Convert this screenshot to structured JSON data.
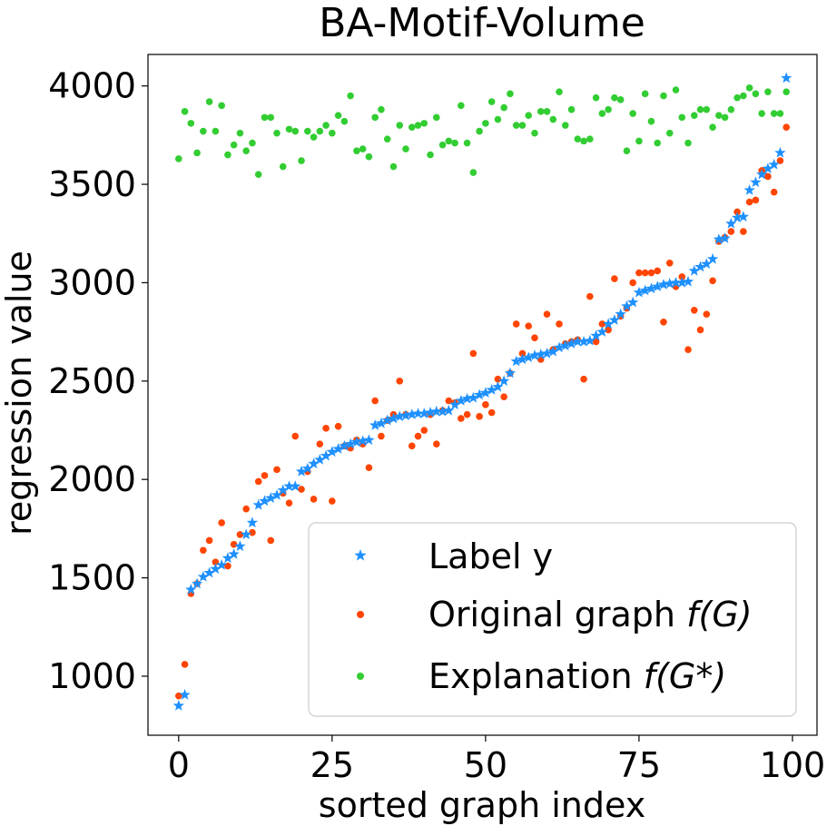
{
  "chart_data": {
    "type": "scatter",
    "title": "BA-Motif-Volume",
    "xlabel": "sorted graph index",
    "ylabel": "regression value",
    "xlim": [
      -5,
      104
    ],
    "ylim": [
      700,
      4160
    ],
    "xticks": [
      0,
      25,
      50,
      75,
      100
    ],
    "yticks": [
      1000,
      1500,
      2000,
      2500,
      3000,
      3500,
      4000
    ],
    "grid": false,
    "legend_position": "lower-right",
    "legend_entries": [
      {
        "label": "Label y",
        "marker": "star",
        "color": "#1e90ff"
      },
      {
        "label": "Original graph",
        "math": "f(G)",
        "marker": "circle",
        "color": "#ff4500"
      },
      {
        "label": "Explanation",
        "math": "f(G*)",
        "marker": "circle",
        "color": "#32cd32"
      }
    ],
    "series": [
      {
        "name": "Label y",
        "color": "#1e90ff",
        "marker": "star",
        "x": [
          0,
          1,
          2,
          3,
          4,
          5,
          6,
          7,
          8,
          9,
          10,
          11,
          12,
          13,
          14,
          15,
          16,
          17,
          18,
          19,
          20,
          21,
          22,
          23,
          24,
          25,
          26,
          27,
          28,
          29,
          30,
          31,
          32,
          33,
          34,
          35,
          36,
          37,
          38,
          39,
          40,
          41,
          42,
          43,
          44,
          45,
          46,
          47,
          48,
          49,
          50,
          51,
          52,
          53,
          54,
          55,
          56,
          57,
          58,
          59,
          60,
          61,
          62,
          63,
          64,
          65,
          66,
          67,
          68,
          69,
          70,
          71,
          72,
          73,
          74,
          75,
          76,
          77,
          78,
          79,
          80,
          81,
          82,
          83,
          84,
          85,
          86,
          87,
          88,
          89,
          90,
          91,
          92,
          93,
          94,
          95,
          96,
          97,
          98,
          99
        ],
        "y": [
          850,
          905,
          1440,
          1470,
          1505,
          1525,
          1545,
          1565,
          1600,
          1620,
          1660,
          1720,
          1780,
          1870,
          1890,
          1905,
          1920,
          1945,
          1965,
          1965,
          2040,
          2055,
          2080,
          2100,
          2120,
          2140,
          2155,
          2170,
          2180,
          2190,
          2195,
          2200,
          2275,
          2285,
          2300,
          2310,
          2320,
          2325,
          2330,
          2335,
          2335,
          2340,
          2345,
          2345,
          2350,
          2380,
          2400,
          2410,
          2415,
          2430,
          2440,
          2455,
          2470,
          2500,
          2540,
          2600,
          2610,
          2620,
          2630,
          2635,
          2640,
          2650,
          2670,
          2680,
          2690,
          2700,
          2700,
          2705,
          2730,
          2750,
          2790,
          2810,
          2840,
          2880,
          2900,
          2950,
          2960,
          2970,
          2980,
          2990,
          2995,
          3000,
          3000,
          3005,
          3060,
          3080,
          3095,
          3120,
          3220,
          3225,
          3300,
          3330,
          3335,
          3470,
          3510,
          3550,
          3580,
          3600,
          3660,
          4040
        ]
      },
      {
        "name": "Original graph f(G)",
        "color": "#ff4500",
        "marker": "circle",
        "x": [
          0,
          1,
          2,
          3,
          4,
          5,
          6,
          7,
          8,
          9,
          10,
          11,
          12,
          13,
          14,
          15,
          16,
          17,
          18,
          19,
          20,
          21,
          22,
          23,
          24,
          25,
          26,
          27,
          28,
          29,
          30,
          31,
          32,
          33,
          34,
          35,
          36,
          37,
          38,
          39,
          40,
          41,
          42,
          43,
          44,
          45,
          46,
          47,
          48,
          49,
          50,
          51,
          52,
          53,
          54,
          55,
          56,
          57,
          58,
          59,
          60,
          61,
          62,
          63,
          64,
          65,
          66,
          67,
          68,
          69,
          70,
          71,
          72,
          73,
          74,
          75,
          76,
          77,
          78,
          79,
          80,
          81,
          82,
          83,
          84,
          85,
          86,
          87,
          88,
          89,
          90,
          91,
          92,
          93,
          94,
          95,
          96,
          97,
          98,
          99
        ],
        "y": [
          900,
          1060,
          1420,
          1470,
          1640,
          1690,
          1580,
          1780,
          1560,
          1670,
          1720,
          1850,
          1730,
          1990,
          2020,
          1690,
          2050,
          1930,
          1880,
          2220,
          1950,
          2040,
          1900,
          2180,
          2260,
          1890,
          2270,
          2170,
          2160,
          2200,
          2180,
          2060,
          2400,
          2220,
          2300,
          2330,
          2500,
          2330,
          2170,
          2220,
          2250,
          2330,
          2180,
          2350,
          2400,
          2390,
          2310,
          2330,
          2640,
          2320,
          2380,
          2340,
          2510,
          2420,
          2540,
          2790,
          2640,
          2780,
          2720,
          2610,
          2840,
          2660,
          2790,
          2690,
          2700,
          2710,
          2510,
          2930,
          2700,
          2790,
          2760,
          3020,
          2830,
          2870,
          3000,
          3050,
          3050,
          3050,
          3060,
          2800,
          3100,
          2980,
          3030,
          2660,
          2860,
          2760,
          2840,
          3010,
          3210,
          3230,
          3260,
          3360,
          3260,
          3410,
          3420,
          3570,
          3540,
          3460,
          3620,
          3790
        ]
      },
      {
        "name": "Explanation f(G*)",
        "color": "#32cd32",
        "marker": "circle",
        "x": [
          0,
          1,
          2,
          3,
          4,
          5,
          6,
          7,
          8,
          9,
          10,
          11,
          12,
          13,
          14,
          15,
          16,
          17,
          18,
          19,
          20,
          21,
          22,
          23,
          24,
          25,
          26,
          27,
          28,
          29,
          30,
          31,
          32,
          33,
          34,
          35,
          36,
          37,
          38,
          39,
          40,
          41,
          42,
          43,
          44,
          45,
          46,
          47,
          48,
          49,
          50,
          51,
          52,
          53,
          54,
          55,
          56,
          57,
          58,
          59,
          60,
          61,
          62,
          63,
          64,
          65,
          66,
          67,
          68,
          69,
          70,
          71,
          72,
          73,
          74,
          75,
          76,
          77,
          78,
          79,
          80,
          81,
          82,
          83,
          84,
          85,
          86,
          87,
          88,
          89,
          90,
          91,
          92,
          93,
          94,
          95,
          96,
          97,
          98,
          99
        ],
        "y": [
          3630,
          3870,
          3810,
          3660,
          3770,
          3920,
          3770,
          3900,
          3650,
          3700,
          3760,
          3670,
          3710,
          3550,
          3840,
          3840,
          3760,
          3590,
          3780,
          3770,
          3620,
          3770,
          3740,
          3770,
          3800,
          3760,
          3850,
          3820,
          3950,
          3670,
          3680,
          3640,
          3840,
          3880,
          3730,
          3590,
          3800,
          3680,
          3790,
          3800,
          3810,
          3650,
          3840,
          3700,
          3720,
          3710,
          3900,
          3710,
          3560,
          3770,
          3810,
          3920,
          3830,
          3890,
          3960,
          3800,
          3800,
          3850,
          3760,
          3870,
          3870,
          3830,
          3970,
          3800,
          3880,
          3730,
          3720,
          3730,
          3940,
          3860,
          3880,
          3940,
          3930,
          3670,
          3860,
          3720,
          3960,
          3820,
          3710,
          3950,
          3760,
          3980,
          3840,
          3710,
          3850,
          3880,
          3880,
          3790,
          3850,
          3840,
          3880,
          3940,
          3950,
          3990,
          3960,
          3860,
          3970,
          3860,
          3860,
          3970
        ]
      }
    ]
  }
}
